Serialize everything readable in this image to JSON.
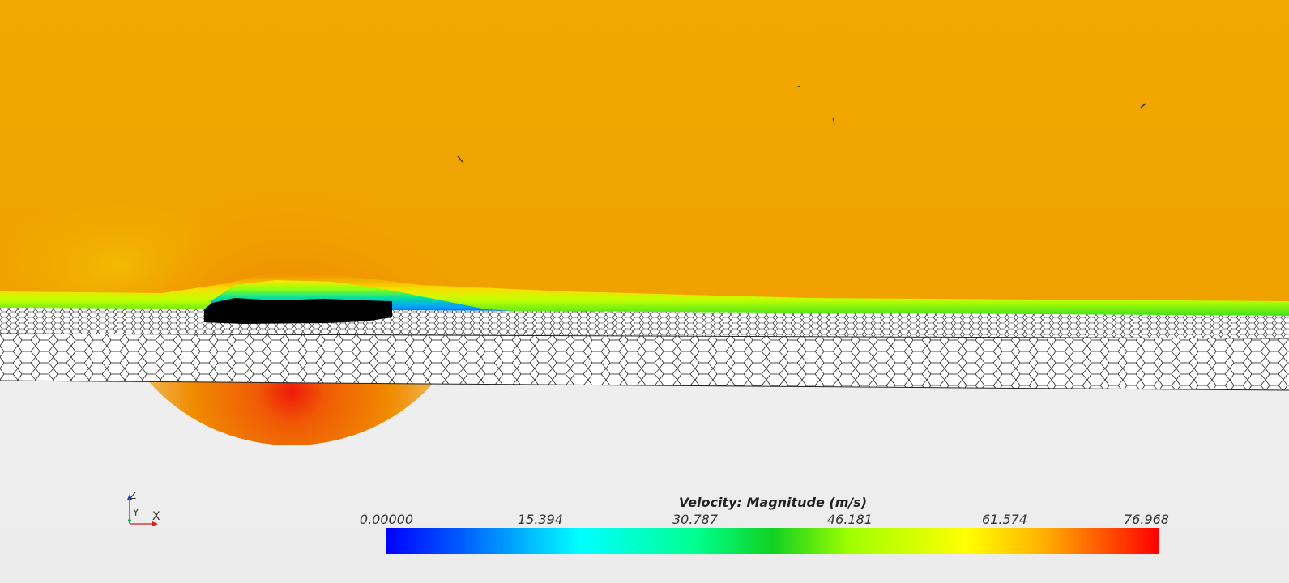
{
  "scalar_bar": {
    "title": "Velocity: Magnitude (m/s)",
    "ticks": [
      "0.00000",
      "15.394",
      "30.787",
      "46.181",
      "61.574",
      "76.968"
    ],
    "min": 0.0,
    "max": 76.968,
    "colormap": [
      "#0000ff",
      "#0080ff",
      "#00ffff",
      "#00ff80",
      "#00d020",
      "#80ff00",
      "#ffff00",
      "#ffa500",
      "#ff0000"
    ]
  },
  "triad": {
    "z_label": "Z",
    "y_label": "Y",
    "x_label": "X"
  },
  "colors": {
    "freestream": "#f1a700",
    "stagnation": "#f0300a",
    "wake_low": "#0a50ff",
    "body": "#000000",
    "mesh_line": "#000000",
    "background": "#f0f0f0"
  }
}
